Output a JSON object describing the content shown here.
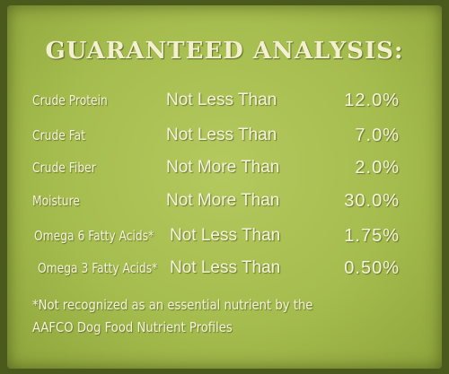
{
  "header": {
    "title": "GUARANTEED ANALYSIS:"
  },
  "table": {
    "rows": [
      [
        "Crude Protein",
        "Not Less Than",
        "12.0%"
      ],
      [
        "Crude Fat",
        "Not Less Than",
        "7.0%"
      ],
      [
        "Crude Fiber",
        "Not More Than",
        "2.0%"
      ],
      [
        "Moisture",
        "Not More Than",
        "30.0%"
      ],
      [
        "Omega 6 Fatty Acids*",
        "Not Less Than",
        "1.75%"
      ],
      [
        "Omega 3 Fatty Acids*",
        "Not Less Than",
        "0.50%"
      ]
    ]
  },
  "footnote": {
    "lines": [
      "*Not recognized as an essential nutrient by the",
      "AAFCO Dog Food Nutrient Profiles"
    ]
  }
}
